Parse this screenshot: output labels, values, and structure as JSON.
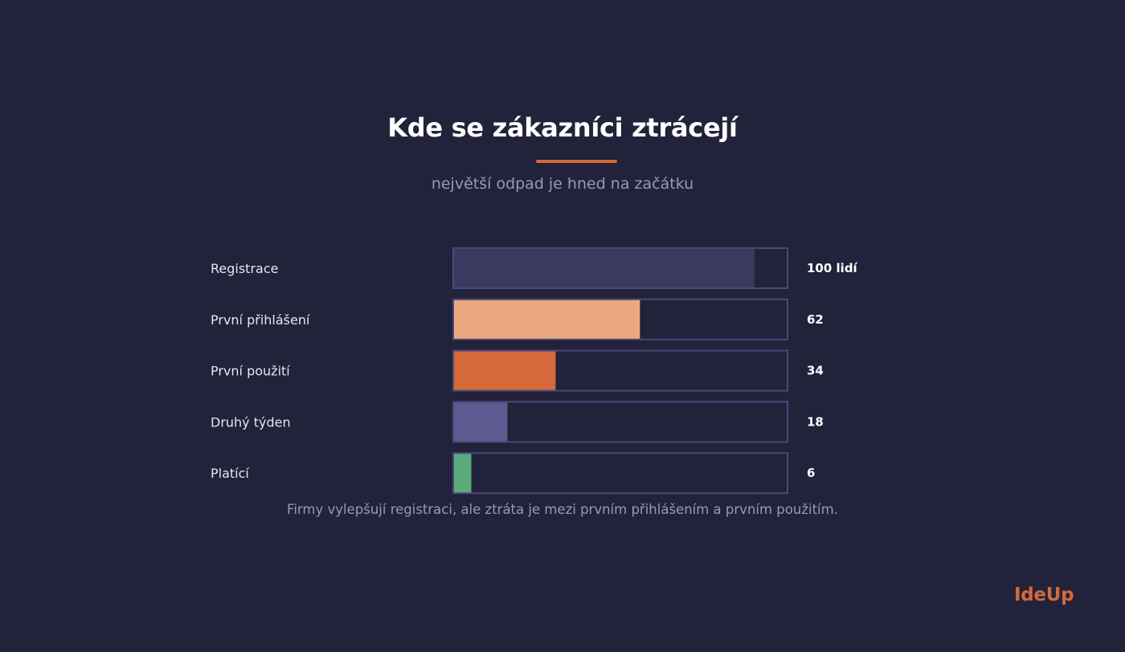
{
  "header": {
    "title": "Kde se zákazníci ztrácejí",
    "subtitle": "největší odpad je hned na začátku"
  },
  "footnote": "Firmy vylepšují registraci, ale ztráta je mezi prvním přihlášením a prvním použitím.",
  "brand": {
    "logo_text": "IdeUp"
  },
  "colors": {
    "background": "#22223a",
    "accent": "#d4693a",
    "track_border": "#4a4878"
  },
  "chart_data": {
    "type": "bar",
    "orientation": "horizontal",
    "categories": [
      "Registrace",
      "První přihlášení",
      "První použití",
      "Druhý týden",
      "Platící"
    ],
    "values": [
      100,
      62,
      34,
      18,
      6
    ],
    "value_labels": [
      "100 lidí",
      "62",
      "34",
      "18",
      "6"
    ],
    "bar_colors": [
      "#3b395f",
      "#eba87e",
      "#d4693a",
      "#5c5a90",
      "#5aab7a"
    ],
    "xlim": [
      0,
      111
    ],
    "grid": false,
    "legend": "none"
  }
}
